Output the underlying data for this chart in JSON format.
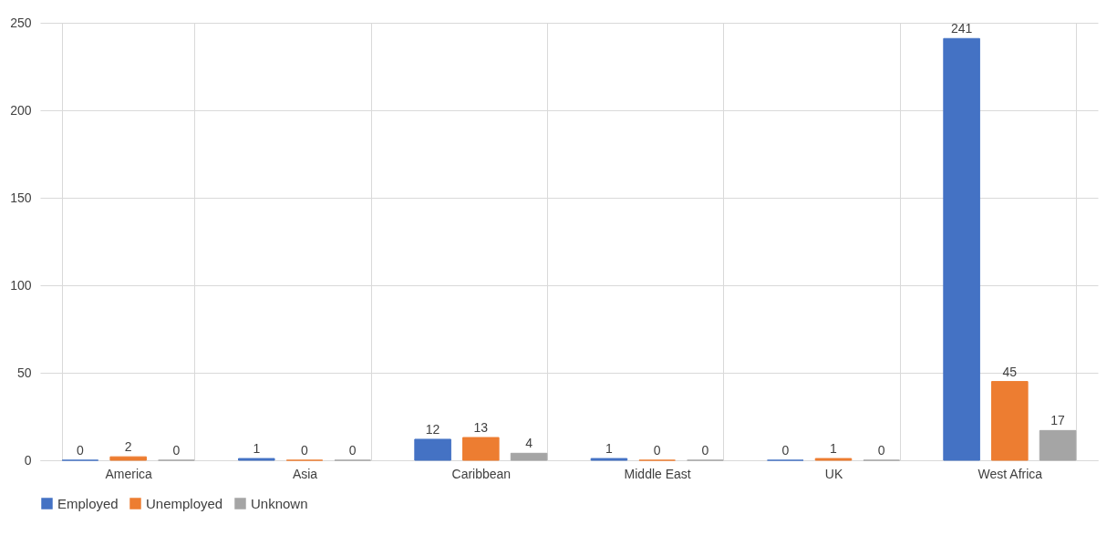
{
  "chart_data": {
    "type": "bar",
    "categories": [
      "America",
      "Asia",
      "Caribbean",
      "Middle East",
      "UK",
      "West Africa"
    ],
    "series": [
      {
        "name": "Employed",
        "color": "#4472c4",
        "values": [
          0,
          1,
          12,
          1,
          0,
          241
        ]
      },
      {
        "name": "Unemployed",
        "color": "#ed7d31",
        "values": [
          2,
          0,
          13,
          0,
          1,
          45
        ]
      },
      {
        "name": "Unknown",
        "color": "#a5a5a5",
        "values": [
          0,
          0,
          4,
          0,
          0,
          17
        ]
      }
    ],
    "ylim": [
      0,
      250
    ],
    "yticks": [
      0,
      50,
      100,
      150,
      200,
      250
    ],
    "grid": true,
    "legend": "bottom",
    "data_labels": true
  }
}
